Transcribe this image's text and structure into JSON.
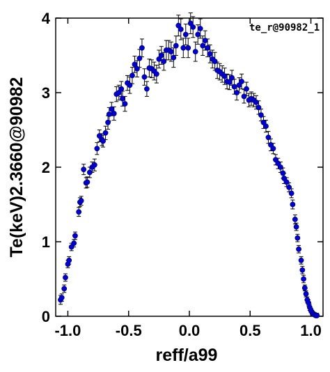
{
  "chart_data": {
    "type": "scatter",
    "title": "",
    "annotation": "te_r@90982_1",
    "xlabel": "reff/a99",
    "ylabel": "Te(keV)2.3660@90982",
    "xlim": [
      -1.1,
      1.1
    ],
    "ylim": [
      0,
      4
    ],
    "xticks": [
      -1.0,
      -0.5,
      0.0,
      0.5,
      1.0
    ],
    "xtick_labels": [
      "-1.0",
      "-0.5",
      "0.0",
      "0.5",
      "1.0"
    ],
    "yticks": [
      0,
      1,
      2,
      3,
      4
    ],
    "ytick_labels": [
      "0",
      "1",
      "2",
      "3",
      "4"
    ],
    "grid": false,
    "marker_color": "#0000cc",
    "series": [
      {
        "x": [
          -1.06,
          -1.05,
          -1.03,
          -1.02,
          -1.0,
          -0.99,
          -0.97,
          -0.95,
          -0.94,
          -0.91,
          -0.9,
          -0.89,
          -0.87,
          -0.85,
          -0.84,
          -0.82,
          -0.8,
          -0.78,
          -0.76,
          -0.74,
          -0.72,
          -0.71,
          -0.69,
          -0.67,
          -0.66,
          -0.64,
          -0.62,
          -0.6,
          -0.58,
          -0.56,
          -0.55,
          -0.53,
          -0.51,
          -0.49,
          -0.47,
          -0.45,
          -0.43,
          -0.41,
          -0.39,
          -0.37,
          -0.35,
          -0.33,
          -0.31,
          -0.29,
          -0.27,
          -0.25,
          -0.23,
          -0.21,
          -0.19,
          -0.17,
          -0.15,
          -0.13,
          -0.11,
          -0.09,
          -0.07,
          -0.05,
          -0.03,
          -0.01,
          0.01,
          0.03,
          0.05,
          0.07,
          0.09,
          0.11,
          0.13,
          0.15,
          0.17,
          0.19,
          0.21,
          0.23,
          0.25,
          0.27,
          0.29,
          0.31,
          0.33,
          0.35,
          0.37,
          0.39,
          0.41,
          0.43,
          0.45,
          0.47,
          0.49,
          0.51,
          0.53,
          0.55,
          0.57,
          0.59,
          0.61,
          0.63,
          0.65,
          0.67,
          0.69,
          0.71,
          0.73,
          0.75,
          0.77,
          0.78,
          0.8,
          0.82,
          0.84,
          0.85,
          0.87,
          0.88,
          0.89,
          0.9,
          0.92,
          0.93,
          0.94,
          0.95,
          0.96,
          0.97,
          0.98,
          0.99,
          1.0,
          1.01,
          1.02,
          1.03,
          1.04,
          1.05
        ],
        "y": [
          0.22,
          0.25,
          0.37,
          0.52,
          0.7,
          0.75,
          0.93,
          0.98,
          1.08,
          1.4,
          1.53,
          1.55,
          1.97,
          1.79,
          1.8,
          1.93,
          2.0,
          2.03,
          2.25,
          2.42,
          2.37,
          2.35,
          2.46,
          2.6,
          2.71,
          2.78,
          2.72,
          2.98,
          3.0,
          3.05,
          2.92,
          2.85,
          3.13,
          3.1,
          3.23,
          3.38,
          3.32,
          3.46,
          3.6,
          3.21,
          3.05,
          3.33,
          3.32,
          3.29,
          3.25,
          3.45,
          3.5,
          3.42,
          3.57,
          3.57,
          3.55,
          3.47,
          3.63,
          3.9,
          3.85,
          3.6,
          3.78,
          3.6,
          3.93,
          3.88,
          3.55,
          3.78,
          3.86,
          3.63,
          3.7,
          3.6,
          3.52,
          3.45,
          3.42,
          3.3,
          3.28,
          3.25,
          3.22,
          3.15,
          3.14,
          3.2,
          3.08,
          3.0,
          3.1,
          3.15,
          2.95,
          3.05,
          2.9,
          2.92,
          2.9,
          2.87,
          2.8,
          2.7,
          2.6,
          2.55,
          2.4,
          2.3,
          2.25,
          2.1,
          2.05,
          2.0,
          1.92,
          1.85,
          1.8,
          1.73,
          1.65,
          1.5,
          1.3,
          1.2,
          1.05,
          0.9,
          0.75,
          0.62,
          0.5,
          0.38,
          0.3,
          0.22,
          0.18,
          0.12,
          0.08,
          0.05,
          0.03,
          0.02,
          0.01,
          0.01
        ],
        "err": [
          0.06,
          0.05,
          0.05,
          0.05,
          0.05,
          0.05,
          0.05,
          0.05,
          0.05,
          0.06,
          0.06,
          0.06,
          0.07,
          0.07,
          0.07,
          0.07,
          0.07,
          0.08,
          0.08,
          0.08,
          0.08,
          0.08,
          0.09,
          0.09,
          0.09,
          0.09,
          0.09,
          0.1,
          0.1,
          0.1,
          0.1,
          0.1,
          0.1,
          0.11,
          0.11,
          0.11,
          0.11,
          0.12,
          0.12,
          0.11,
          0.1,
          0.12,
          0.12,
          0.12,
          0.12,
          0.12,
          0.12,
          0.12,
          0.13,
          0.13,
          0.13,
          0.13,
          0.13,
          0.14,
          0.14,
          0.13,
          0.14,
          0.13,
          0.14,
          0.14,
          0.13,
          0.13,
          0.13,
          0.13,
          0.13,
          0.12,
          0.12,
          0.12,
          0.12,
          0.11,
          0.11,
          0.11,
          0.11,
          0.1,
          0.1,
          0.1,
          0.1,
          0.1,
          0.1,
          0.1,
          0.09,
          0.09,
          0.09,
          0.09,
          0.09,
          0.09,
          0.09,
          0.08,
          0.08,
          0.08,
          0.08,
          0.08,
          0.07,
          0.07,
          0.07,
          0.07,
          0.07,
          0.07,
          0.06,
          0.06,
          0.06,
          0.06,
          0.06,
          0.05,
          0.05,
          0.05,
          0.05,
          0.05,
          0.05,
          0.04,
          0.04,
          0.04,
          0.04,
          0.04,
          0.03,
          0.03,
          0.03,
          0.03,
          0.03,
          0.03
        ]
      }
    ]
  }
}
